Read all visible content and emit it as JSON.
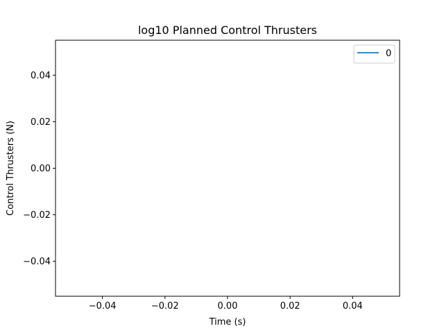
{
  "chart_data": {
    "type": "line",
    "title": "log10 Planned Control Thrusters",
    "xlabel": "Time (s)",
    "ylabel": "Control Thrusters (N)",
    "xlim": [
      -0.055,
      0.055
    ],
    "ylim": [
      -0.055,
      0.055
    ],
    "xticks": [
      -0.04,
      -0.02,
      0.0,
      0.02,
      0.04
    ],
    "xtick_labels": [
      "−0.04",
      "−0.02",
      "0.00",
      "0.02",
      "0.04"
    ],
    "yticks": [
      -0.04,
      -0.02,
      0.0,
      0.02,
      0.04
    ],
    "ytick_labels": [
      "−0.04",
      "−0.02",
      "0.00",
      "0.02",
      "0.04"
    ],
    "grid": false,
    "legend_position": "top-right",
    "series": [
      {
        "name": "0",
        "color": "#1f77b4",
        "x": [],
        "y": []
      }
    ]
  }
}
